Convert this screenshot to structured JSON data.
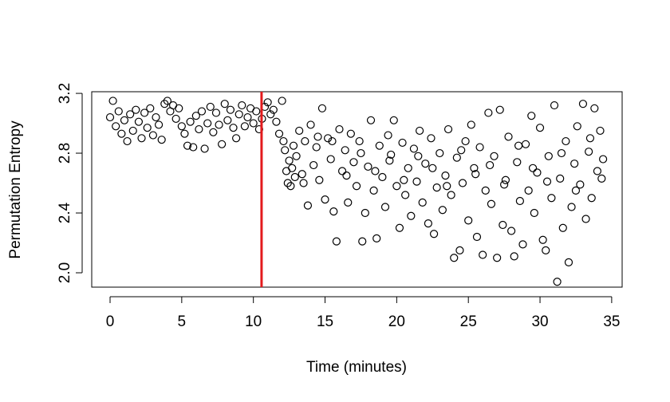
{
  "chart_data": {
    "type": "scatter",
    "xlabel": "Time (minutes)",
    "ylabel": "Permutation Entropy",
    "xlim": [
      -1.28,
      35.73
    ],
    "ylim": [
      1.904,
      3.211
    ],
    "xticks": [
      0,
      5,
      10,
      15,
      20,
      25,
      30,
      35
    ],
    "yticks": [
      {
        "value": 2.0,
        "label": "2.0"
      },
      2.4,
      2.8,
      3.2
    ],
    "color": "#000000",
    "vline": 10.57,
    "vline_color": "#e31a1c",
    "grid": false,
    "x": [
      0.0,
      0.2,
      0.4,
      0.6,
      0.8,
      1.0,
      1.2,
      1.4,
      1.6,
      1.8,
      2.0,
      2.2,
      2.4,
      2.6,
      2.8,
      3.0,
      3.2,
      3.4,
      3.6,
      3.8,
      4.0,
      4.2,
      4.4,
      4.6,
      4.8,
      5.0,
      5.2,
      5.4,
      5.6,
      5.8,
      6.0,
      6.2,
      6.4,
      6.6,
      6.8,
      7.0,
      7.2,
      7.4,
      7.6,
      7.8,
      8.0,
      8.2,
      8.4,
      8.6,
      8.8,
      9.0,
      9.2,
      9.4,
      9.6,
      9.8,
      10.0,
      10.2,
      10.4,
      10.6,
      10.8,
      11.0,
      11.2,
      11.4,
      11.6,
      11.8,
      12.0,
      12.1,
      12.2,
      12.3,
      12.4,
      12.5,
      12.6,
      12.7,
      12.8,
      12.9,
      13.0,
      13.2,
      13.4,
      13.6,
      13.8,
      14.0,
      14.2,
      14.4,
      14.6,
      14.8,
      15.0,
      15.2,
      15.4,
      15.6,
      15.8,
      16.0,
      16.2,
      16.4,
      16.6,
      16.8,
      17.0,
      17.2,
      17.4,
      17.6,
      17.8,
      18.0,
      18.2,
      18.4,
      18.6,
      18.8,
      19.0,
      19.2,
      19.4,
      19.6,
      19.8,
      20.0,
      20.2,
      20.4,
      20.6,
      20.8,
      21.0,
      21.2,
      21.4,
      21.6,
      21.8,
      22.0,
      22.2,
      22.4,
      22.6,
      22.8,
      23.0,
      23.2,
      23.4,
      23.6,
      23.8,
      24.0,
      24.2,
      24.4,
      24.6,
      24.8,
      25.0,
      25.2,
      25.4,
      25.6,
      25.8,
      26.0,
      26.2,
      26.4,
      26.6,
      26.8,
      27.0,
      27.2,
      27.4,
      27.6,
      27.8,
      28.0,
      28.2,
      28.4,
      28.6,
      28.8,
      29.0,
      29.2,
      29.4,
      29.6,
      29.8,
      30.0,
      30.2,
      30.4,
      30.6,
      30.8,
      31.0,
      31.2,
      31.4,
      31.6,
      31.8,
      32.0,
      32.2,
      32.4,
      32.6,
      32.8,
      33.0,
      33.2,
      33.4,
      33.6,
      33.8,
      34.0,
      34.2,
      34.4,
      13.5,
      14.5,
      15.5,
      16.5,
      17.5,
      18.5,
      19.5,
      20.5,
      21.5,
      22.5,
      23.5,
      24.5,
      25.5,
      26.5,
      27.5,
      28.5,
      29.5,
      30.5,
      31.5,
      32.5,
      33.5,
      34.3
    ],
    "values": [
      3.04,
      3.15,
      2.98,
      3.08,
      2.93,
      3.02,
      2.88,
      3.06,
      2.95,
      3.09,
      3.01,
      2.9,
      3.07,
      2.97,
      3.1,
      2.92,
      3.04,
      2.99,
      2.89,
      3.13,
      3.15,
      3.08,
      3.12,
      3.03,
      3.1,
      2.98,
      2.93,
      2.85,
      3.01,
      2.84,
      3.05,
      2.96,
      3.08,
      2.83,
      3.0,
      3.11,
      2.94,
      3.07,
      2.99,
      2.86,
      3.13,
      3.02,
      3.09,
      2.97,
      2.9,
      3.06,
      3.12,
      2.98,
      3.04,
      3.1,
      3.0,
      3.08,
      2.96,
      3.03,
      3.11,
      3.14,
      3.06,
      3.09,
      3.01,
      2.93,
      3.15,
      2.88,
      2.82,
      2.68,
      2.6,
      2.75,
      2.58,
      2.7,
      2.85,
      2.64,
      2.78,
      2.95,
      2.66,
      2.88,
      2.45,
      2.99,
      2.72,
      2.84,
      2.62,
      3.1,
      2.49,
      2.9,
      2.76,
      2.41,
      2.21,
      2.96,
      2.68,
      2.82,
      2.47,
      2.93,
      2.74,
      2.58,
      2.88,
      2.21,
      2.4,
      2.71,
      3.02,
      2.55,
      2.23,
      2.85,
      2.64,
      2.44,
      2.92,
      2.79,
      3.02,
      2.58,
      2.3,
      2.87,
      2.52,
      2.7,
      2.38,
      2.83,
      2.61,
      2.95,
      2.47,
      2.73,
      2.33,
      2.9,
      2.26,
      2.57,
      2.8,
      2.42,
      2.65,
      2.96,
      2.52,
      2.1,
      2.77,
      2.15,
      2.6,
      2.88,
      2.35,
      2.99,
      2.7,
      2.24,
      2.84,
      2.12,
      2.55,
      3.07,
      2.46,
      2.78,
      2.1,
      3.09,
      2.32,
      2.62,
      2.91,
      2.28,
      2.11,
      2.74,
      2.48,
      2.19,
      2.86,
      2.55,
      3.05,
      2.4,
      2.67,
      2.97,
      2.22,
      2.15,
      2.78,
      2.5,
      3.12,
      1.94,
      2.63,
      2.3,
      2.88,
      2.07,
      2.44,
      2.73,
      2.98,
      2.59,
      3.13,
      2.36,
      2.81,
      2.5,
      3.1,
      2.68,
      2.95,
      2.76,
      2.6,
      2.91,
      2.88,
      2.65,
      2.8,
      2.68,
      2.75,
      2.62,
      2.78,
      2.7,
      2.58,
      2.82,
      2.66,
      2.72,
      2.59,
      2.85,
      2.7,
      2.61,
      2.8,
      2.55,
      2.9,
      2.63
    ]
  }
}
